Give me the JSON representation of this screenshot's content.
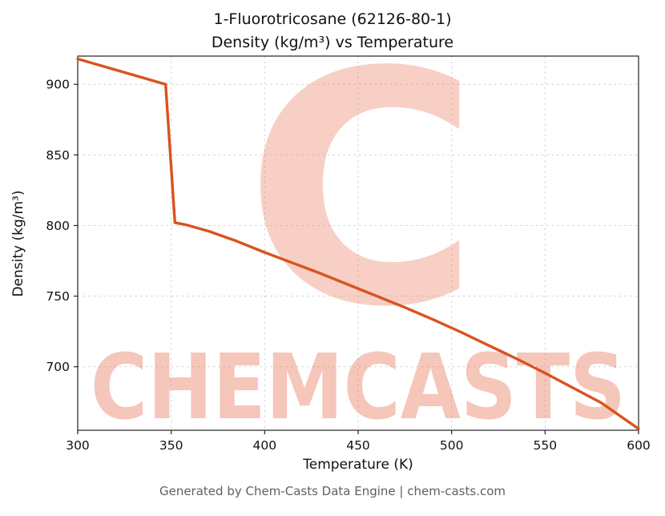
{
  "chart_data": {
    "type": "line",
    "title": "1-Fluorotricosane (62126-80-1)",
    "subtitle": "Density (kg/m³) vs Temperature",
    "xlabel": "Temperature (K)",
    "ylabel": "Density (kg/m³)",
    "xlim": [
      300,
      600
    ],
    "ylim": [
      655,
      920
    ],
    "xticks": [
      300,
      350,
      400,
      450,
      500,
      550,
      600
    ],
    "yticks": [
      700,
      750,
      800,
      850,
      900
    ],
    "grid": true,
    "legend": false,
    "line_color": "#d9531e",
    "series": [
      {
        "name": "Density",
        "x": [
          300,
          347,
          352,
          358,
          370,
          385,
          400,
          415,
          430,
          445,
          460,
          475,
          490,
          505,
          520,
          535,
          550,
          565,
          580,
          600
        ],
        "y": [
          918,
          900,
          802,
          800.5,
          796,
          789,
          781,
          773.5,
          766,
          758,
          750,
          742,
          733.5,
          724.5,
          715,
          705.5,
          695.5,
          685,
          674.5,
          656
        ]
      }
    ]
  },
  "watermark": {
    "text": "CHEMCASTS",
    "letter": "C",
    "color": "#e8765a"
  },
  "footer": {
    "text": "Generated by Chem-Casts Data Engine | chem-casts.com"
  }
}
